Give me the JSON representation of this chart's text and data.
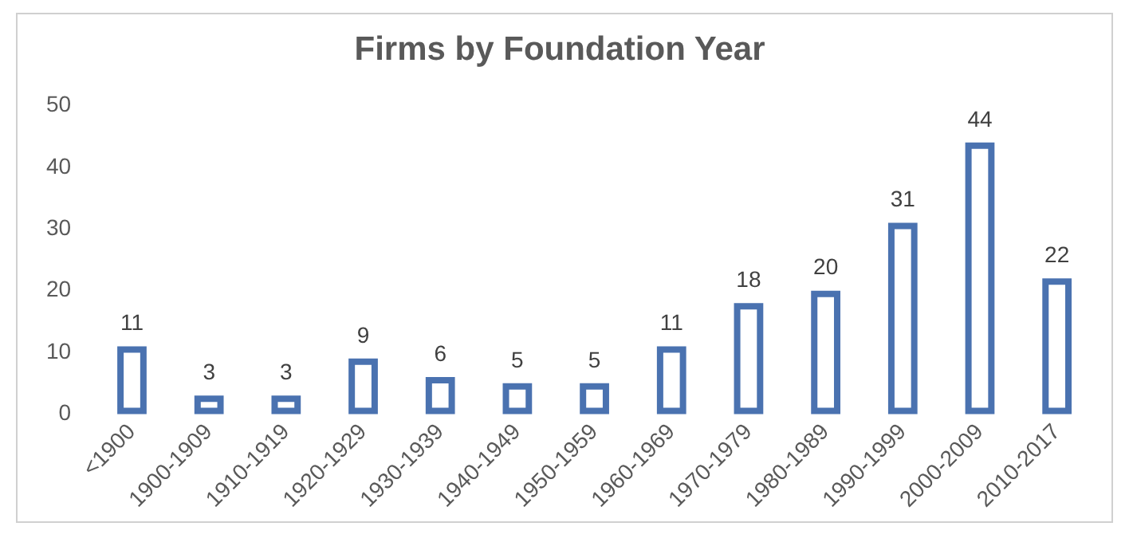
{
  "chart_data": {
    "type": "bar",
    "title": "Firms by Foundation Year",
    "categories": [
      "<1900",
      "1900-1909",
      "1910-1919",
      "1920-1929",
      "1930-1939",
      "1940-1949",
      "1950-1959",
      "1960-1969",
      "1970-1979",
      "1980-1989",
      "1990-1999",
      "2000-2009",
      "2010-2017"
    ],
    "values": [
      11,
      3,
      3,
      9,
      6,
      5,
      5,
      11,
      18,
      20,
      31,
      44,
      22
    ],
    "color": "#4a72b0",
    "ylim": [
      0,
      50
    ],
    "yticks": [
      0,
      10,
      20,
      30,
      40,
      50
    ],
    "grid": false,
    "legend": false,
    "data_labels": true
  }
}
